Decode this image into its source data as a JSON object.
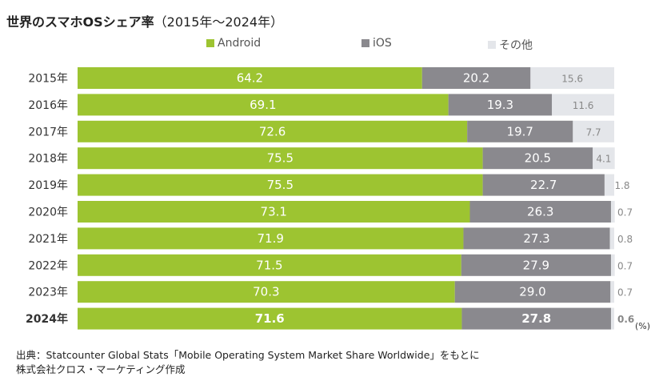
{
  "title_bold": "世界のスマホOSシェア率",
  "title_rest": "（2015年～2024年）",
  "unit": "(%)",
  "footer": [
    "出典：Statcounter Global Stats「Mobile Operating System Market Share Worldwide」をもとに",
    "株式会社クロス・マーケティング作成"
  ],
  "chart_data": {
    "type": "bar",
    "orientation": "horizontal",
    "stacked": true,
    "categories": [
      "2015年",
      "2016年",
      "2017年",
      "2018年",
      "2019年",
      "2020年",
      "2021年",
      "2022年",
      "2023年",
      "2024年"
    ],
    "highlight_category": "2024年",
    "series": [
      {
        "name": "Android",
        "color": "#9dc431",
        "values": [
          64.2,
          69.1,
          72.6,
          75.5,
          75.5,
          73.1,
          71.9,
          71.5,
          70.3,
          71.6
        ]
      },
      {
        "name": "iOS",
        "color": "#8a898e",
        "values": [
          20.2,
          19.3,
          19.7,
          20.5,
          22.7,
          26.3,
          27.3,
          27.9,
          29.0,
          27.8
        ]
      },
      {
        "name": "その他",
        "color": "#e4e6ea",
        "values": [
          15.6,
          11.6,
          7.7,
          4.1,
          1.8,
          0.7,
          0.8,
          0.7,
          0.7,
          0.6
        ]
      }
    ],
    "xlim": [
      0,
      100
    ],
    "legend": "top",
    "grid": false
  }
}
